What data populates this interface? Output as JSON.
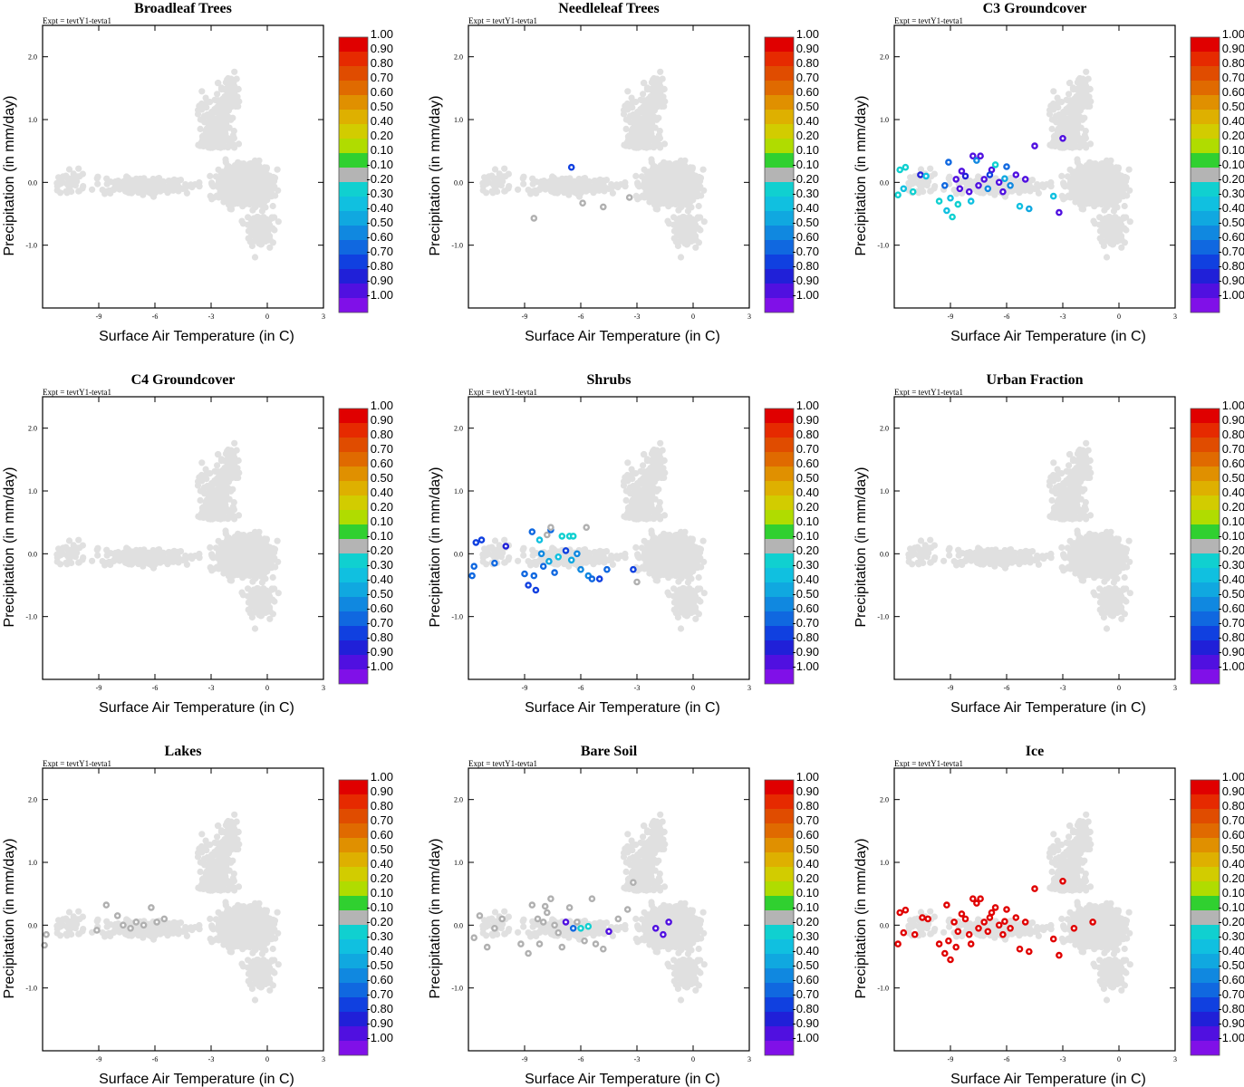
{
  "figure": {
    "expt_label": "Expt = tevtY1-tevta1",
    "xlabel": "Surface Air Temperature (in C)",
    "ylabel": "Precipitation (in mm/day)",
    "colors": {
      "background_points": "#e0e0e0",
      "axis": "#000000",
      "neutral_points": "#b0b0b0"
    }
  },
  "colorbar": {
    "labels": [
      "1.00",
      "0.90",
      "0.80",
      "0.70",
      "0.60",
      "0.50",
      "0.40",
      "0.20",
      "0.10",
      "-0.10",
      "-0.20",
      "-0.30",
      "-0.40",
      "-0.50",
      "-0.60",
      "-0.70",
      "-0.80",
      "-0.90",
      "-1.00"
    ],
    "colors": [
      "#e00000",
      "#e62a00",
      "#e04c00",
      "#e06a00",
      "#e09000",
      "#deb000",
      "#d2cc00",
      "#b0dc00",
      "#30d030",
      "#b4b4b4",
      "#10d0d0",
      "#10c0e0",
      "#10a8e0",
      "#1088e0",
      "#1068e0",
      "#1040e0",
      "#2020d8",
      "#5010e0",
      "#8010e8"
    ]
  },
  "chart_data": [
    {
      "type": "scatter",
      "title": "Broadleaf Trees",
      "xlabel": "Surface Air Temperature (in C)",
      "ylabel": "Precipitation (in mm/day)",
      "xlim": [
        -12,
        3
      ],
      "ylim": [
        -2,
        2.5
      ],
      "xticks": [
        "-9",
        "-6",
        "-3",
        "0",
        "3"
      ],
      "yticks": [
        "2.0",
        "1.0",
        "0.0",
        "-1.0"
      ],
      "highlighted_points": []
    },
    {
      "type": "scatter",
      "title": "Needleleaf Trees",
      "xlabel": "Surface Air Temperature (in C)",
      "ylabel": "Precipitation (in mm/day)",
      "xlim": [
        -12,
        3
      ],
      "ylim": [
        -2,
        2.5
      ],
      "xticks": [
        "-9",
        "-6",
        "-3",
        "0",
        "3"
      ],
      "yticks": [
        "2.0",
        "1.0",
        "0.0",
        "-1.0"
      ],
      "highlighted_points": [
        {
          "x": -6.5,
          "y": 0.24,
          "v": -0.7
        },
        {
          "x": -8.5,
          "y": -0.57,
          "v": 0
        },
        {
          "x": -5.9,
          "y": -0.33,
          "v": 0
        },
        {
          "x": -4.8,
          "y": -0.39,
          "v": 0
        },
        {
          "x": -3.4,
          "y": -0.24,
          "v": 0
        }
      ]
    },
    {
      "type": "scatter",
      "title": "C3 Groundcover",
      "xlabel": "Surface Air Temperature (in C)",
      "ylabel": "Precipitation (in mm/day)",
      "xlim": [
        -12,
        3
      ],
      "ylim": [
        -2,
        2.5
      ],
      "xticks": [
        "-9",
        "-6",
        "-3",
        "0",
        "3"
      ],
      "yticks": [
        "2.0",
        "1.0",
        "0.0",
        "-1.0"
      ],
      "highlighted_points": [
        {
          "x": -11.8,
          "y": -0.2,
          "v": -0.2
        },
        {
          "x": -11.7,
          "y": 0.2,
          "v": -0.2
        },
        {
          "x": -11.4,
          "y": 0.24,
          "v": -0.2
        },
        {
          "x": -11.5,
          "y": -0.1,
          "v": -0.3
        },
        {
          "x": -11.0,
          "y": -0.15,
          "v": -0.2
        },
        {
          "x": -10.6,
          "y": 0.12,
          "v": -0.8
        },
        {
          "x": -10.3,
          "y": 0.1,
          "v": -0.3
        },
        {
          "x": -9.6,
          "y": -0.3,
          "v": -0.2
        },
        {
          "x": -9.2,
          "y": -0.45,
          "v": -0.3
        },
        {
          "x": -8.9,
          "y": -0.55,
          "v": -0.2
        },
        {
          "x": -9.0,
          "y": -0.25,
          "v": -0.3
        },
        {
          "x": -9.3,
          "y": -0.05,
          "v": -0.6
        },
        {
          "x": -8.6,
          "y": -0.35,
          "v": -0.2
        },
        {
          "x": -9.1,
          "y": 0.32,
          "v": -0.6
        },
        {
          "x": -8.7,
          "y": 0.05,
          "v": -0.9
        },
        {
          "x": -8.5,
          "y": -0.1,
          "v": -0.9
        },
        {
          "x": -8.4,
          "y": 0.18,
          "v": -0.9
        },
        {
          "x": -8.2,
          "y": 0.1,
          "v": -0.8
        },
        {
          "x": -8.0,
          "y": -0.15,
          "v": -0.9
        },
        {
          "x": -7.8,
          "y": 0.42,
          "v": -0.9
        },
        {
          "x": -7.6,
          "y": 0.35,
          "v": -0.5
        },
        {
          "x": -7.4,
          "y": 0.42,
          "v": -0.9
        },
        {
          "x": -7.2,
          "y": 0.05,
          "v": -0.9
        },
        {
          "x": -7.0,
          "y": -0.1,
          "v": -0.5
        },
        {
          "x": -6.8,
          "y": 0.2,
          "v": -0.9
        },
        {
          "x": -6.6,
          "y": 0.28,
          "v": -0.2
        },
        {
          "x": -6.4,
          "y": 0.0,
          "v": -0.9
        },
        {
          "x": -6.2,
          "y": -0.15,
          "v": -0.9
        },
        {
          "x": -6.0,
          "y": 0.25,
          "v": -0.6
        },
        {
          "x": -5.8,
          "y": -0.05,
          "v": -0.5
        },
        {
          "x": -5.5,
          "y": 0.12,
          "v": -0.9
        },
        {
          "x": -5.3,
          "y": -0.38,
          "v": -0.3
        },
        {
          "x": -5.0,
          "y": 0.05,
          "v": -0.9
        },
        {
          "x": -4.8,
          "y": -0.42,
          "v": -0.4
        },
        {
          "x": -4.5,
          "y": 0.58,
          "v": -0.9
        },
        {
          "x": -3.5,
          "y": -0.22,
          "v": -0.3
        },
        {
          "x": -3.2,
          "y": -0.48,
          "v": -0.9
        },
        {
          "x": -3.0,
          "y": 0.7,
          "v": -0.9
        },
        {
          "x": -7.9,
          "y": -0.3,
          "v": -0.3
        },
        {
          "x": -6.9,
          "y": 0.12,
          "v": -0.7
        },
        {
          "x": -6.1,
          "y": 0.06,
          "v": -0.4
        },
        {
          "x": -7.5,
          "y": -0.05,
          "v": -0.9
        }
      ]
    },
    {
      "type": "scatter",
      "title": "C4 Groundcover",
      "xlabel": "Surface Air Temperature (in C)",
      "ylabel": "Precipitation (in mm/day)",
      "xlim": [
        -12,
        3
      ],
      "ylim": [
        -2,
        2.5
      ],
      "xticks": [
        "-9",
        "-6",
        "-3",
        "0",
        "3"
      ],
      "yticks": [
        "2.0",
        "1.0",
        "0.0",
        "-1.0"
      ],
      "highlighted_points": []
    },
    {
      "type": "scatter",
      "title": "Shrubs",
      "xlabel": "Surface Air Temperature (in C)",
      "ylabel": "Precipitation (in mm/day)",
      "xlim": [
        -12,
        3
      ],
      "ylim": [
        -2,
        2.5
      ],
      "xticks": [
        "-9",
        "-6",
        "-3",
        "0",
        "3"
      ],
      "yticks": [
        "2.0",
        "1.0",
        "0.0",
        "-1.0"
      ],
      "highlighted_points": [
        {
          "x": -11.8,
          "y": -0.35,
          "v": -0.6
        },
        {
          "x": -11.6,
          "y": 0.18,
          "v": -0.7
        },
        {
          "x": -11.3,
          "y": 0.22,
          "v": -0.7
        },
        {
          "x": -11.7,
          "y": -0.2,
          "v": -0.6
        },
        {
          "x": -10.6,
          "y": -0.15,
          "v": -0.6
        },
        {
          "x": -10.0,
          "y": 0.12,
          "v": -0.8
        },
        {
          "x": -9.0,
          "y": -0.32,
          "v": -0.6
        },
        {
          "x": -8.8,
          "y": -0.5,
          "v": -0.7
        },
        {
          "x": -8.5,
          "y": -0.35,
          "v": -0.6
        },
        {
          "x": -8.4,
          "y": -0.58,
          "v": -0.7
        },
        {
          "x": -8.6,
          "y": 0.35,
          "v": -0.6
        },
        {
          "x": -8.2,
          "y": 0.22,
          "v": -0.3
        },
        {
          "x": -8.0,
          "y": -0.2,
          "v": -0.6
        },
        {
          "x": -7.8,
          "y": 0.3,
          "v": 0
        },
        {
          "x": -7.6,
          "y": 0.38,
          "v": -0.6
        },
        {
          "x": -7.4,
          "y": -0.3,
          "v": -0.6
        },
        {
          "x": -7.2,
          "y": -0.05,
          "v": -0.3
        },
        {
          "x": -7.0,
          "y": 0.28,
          "v": -0.2
        },
        {
          "x": -6.8,
          "y": 0.05,
          "v": -0.7
        },
        {
          "x": -6.6,
          "y": 0.28,
          "v": -0.2
        },
        {
          "x": -6.4,
          "y": 0.28,
          "v": -0.2
        },
        {
          "x": -6.2,
          "y": 0.0,
          "v": -0.5
        },
        {
          "x": -6.0,
          "y": -0.25,
          "v": -0.5
        },
        {
          "x": -5.6,
          "y": -0.35,
          "v": -0.5
        },
        {
          "x": -5.4,
          "y": -0.4,
          "v": -0.6
        },
        {
          "x": -5.0,
          "y": -0.4,
          "v": -0.7
        },
        {
          "x": -4.6,
          "y": -0.25,
          "v": -0.6
        },
        {
          "x": -3.2,
          "y": -0.25,
          "v": -0.7
        },
        {
          "x": -8.1,
          "y": 0.0,
          "v": -0.5
        },
        {
          "x": -7.7,
          "y": -0.12,
          "v": -0.4
        },
        {
          "x": -6.5,
          "y": -0.1,
          "v": -0.4
        },
        {
          "x": -3.0,
          "y": -0.45,
          "v": 0
        },
        {
          "x": -5.7,
          "y": 0.42,
          "v": 0
        },
        {
          "x": -7.6,
          "y": 0.42,
          "v": 0
        }
      ]
    },
    {
      "type": "scatter",
      "title": "Urban Fraction",
      "xlabel": "Surface Air Temperature (in C)",
      "ylabel": "Precipitation (in mm/day)",
      "xlim": [
        -12,
        3
      ],
      "ylim": [
        -2,
        2.5
      ],
      "xticks": [
        "-9",
        "-6",
        "-3",
        "0",
        "3"
      ],
      "yticks": [
        "2.0",
        "1.0",
        "0.0",
        "-1.0"
      ],
      "highlighted_points": []
    },
    {
      "type": "scatter",
      "title": "Lakes",
      "xlabel": "Surface Air Temperature (in C)",
      "ylabel": "Precipitation (in mm/day)",
      "xlim": [
        -12,
        3
      ],
      "ylim": [
        -2,
        2.5
      ],
      "xticks": [
        "-9",
        "-6",
        "-3",
        "0",
        "3"
      ],
      "yticks": [
        "2.0",
        "1.0",
        "0.0",
        "-1.0"
      ],
      "highlighted_points": [
        {
          "x": -11.8,
          "y": -0.15,
          "v": 0
        },
        {
          "x": -11.9,
          "y": -0.32,
          "v": 0
        },
        {
          "x": -9.1,
          "y": -0.08,
          "v": 0
        },
        {
          "x": -8.6,
          "y": 0.32,
          "v": 0
        },
        {
          "x": -8.0,
          "y": 0.15,
          "v": 0
        },
        {
          "x": -7.7,
          "y": 0.0,
          "v": 0
        },
        {
          "x": -7.3,
          "y": -0.05,
          "v": 0
        },
        {
          "x": -7.0,
          "y": 0.05,
          "v": 0
        },
        {
          "x": -6.6,
          "y": 0.0,
          "v": 0
        },
        {
          "x": -6.2,
          "y": 0.28,
          "v": 0
        },
        {
          "x": -5.9,
          "y": 0.05,
          "v": 0
        },
        {
          "x": -5.5,
          "y": 0.1,
          "v": 0
        }
      ]
    },
    {
      "type": "scatter",
      "title": "Bare Soil",
      "xlabel": "Surface Air Temperature (in C)",
      "ylabel": "Precipitation (in mm/day)",
      "xlim": [
        -12,
        3
      ],
      "ylim": [
        -2,
        2.5
      ],
      "xticks": [
        "-9",
        "-6",
        "-3",
        "0",
        "3"
      ],
      "yticks": [
        "2.0",
        "1.0",
        "0.0",
        "-1.0"
      ],
      "highlighted_points": [
        {
          "x": -11.7,
          "y": -0.2,
          "v": 0
        },
        {
          "x": -11.4,
          "y": 0.15,
          "v": 0
        },
        {
          "x": -10.6,
          "y": -0.05,
          "v": 0
        },
        {
          "x": -10.2,
          "y": 0.1,
          "v": 0
        },
        {
          "x": -9.2,
          "y": -0.3,
          "v": 0
        },
        {
          "x": -8.8,
          "y": -0.45,
          "v": 0
        },
        {
          "x": -8.6,
          "y": 0.32,
          "v": 0
        },
        {
          "x": -8.3,
          "y": 0.1,
          "v": 0
        },
        {
          "x": -8.2,
          "y": -0.3,
          "v": 0
        },
        {
          "x": -8.0,
          "y": 0.05,
          "v": 0
        },
        {
          "x": -7.8,
          "y": 0.2,
          "v": 0
        },
        {
          "x": -7.6,
          "y": 0.42,
          "v": 0
        },
        {
          "x": -7.4,
          "y": 0.0,
          "v": 0
        },
        {
          "x": -7.2,
          "y": -0.12,
          "v": 0
        },
        {
          "x": -7.0,
          "y": -0.35,
          "v": 0
        },
        {
          "x": -6.8,
          "y": 0.05,
          "v": -0.9
        },
        {
          "x": -6.6,
          "y": 0.28,
          "v": 0
        },
        {
          "x": -6.4,
          "y": -0.05,
          "v": -0.6
        },
        {
          "x": -6.2,
          "y": 0.05,
          "v": 0
        },
        {
          "x": -6.0,
          "y": -0.05,
          "v": -0.2
        },
        {
          "x": -5.8,
          "y": -0.25,
          "v": 0
        },
        {
          "x": -5.6,
          "y": -0.02,
          "v": -0.2
        },
        {
          "x": -5.4,
          "y": 0.42,
          "v": 0
        },
        {
          "x": -5.2,
          "y": -0.3,
          "v": 0
        },
        {
          "x": -4.8,
          "y": -0.38,
          "v": 0
        },
        {
          "x": -4.5,
          "y": -0.1,
          "v": -0.9
        },
        {
          "x": -4.0,
          "y": 0.1,
          "v": 0
        },
        {
          "x": -3.2,
          "y": 0.68,
          "v": 0
        },
        {
          "x": -2.0,
          "y": -0.05,
          "v": -0.9
        },
        {
          "x": -1.6,
          "y": -0.15,
          "v": -0.9
        },
        {
          "x": -1.3,
          "y": 0.05,
          "v": -0.9
        },
        {
          "x": -3.5,
          "y": 0.25,
          "v": 0
        },
        {
          "x": -11.0,
          "y": -0.35,
          "v": 0
        },
        {
          "x": -7.9,
          "y": 0.3,
          "v": 0
        }
      ]
    },
    {
      "type": "scatter",
      "title": "Ice",
      "xlabel": "Surface Air Temperature (in C)",
      "ylabel": "Precipitation (in mm/day)",
      "xlim": [
        -12,
        3
      ],
      "ylim": [
        -2,
        2.5
      ],
      "xticks": [
        "-9",
        "-6",
        "-3",
        "0",
        "3"
      ],
      "yticks": [
        "2.0",
        "1.0",
        "0.0",
        "-1.0"
      ],
      "highlighted_points": [
        {
          "x": -11.8,
          "y": -0.3,
          "v": 1
        },
        {
          "x": -11.7,
          "y": 0.2,
          "v": 1
        },
        {
          "x": -11.4,
          "y": 0.24,
          "v": 1
        },
        {
          "x": -11.5,
          "y": -0.12,
          "v": 1
        },
        {
          "x": -10.9,
          "y": -0.15,
          "v": 1
        },
        {
          "x": -10.5,
          "y": 0.12,
          "v": 1
        },
        {
          "x": -10.2,
          "y": 0.1,
          "v": 1
        },
        {
          "x": -9.6,
          "y": -0.3,
          "v": 1
        },
        {
          "x": -9.3,
          "y": -0.45,
          "v": 1
        },
        {
          "x": -9.0,
          "y": -0.55,
          "v": 1
        },
        {
          "x": -9.1,
          "y": -0.25,
          "v": 1
        },
        {
          "x": -9.2,
          "y": 0.32,
          "v": 1
        },
        {
          "x": -8.8,
          "y": 0.05,
          "v": 1
        },
        {
          "x": -8.6,
          "y": -0.1,
          "v": 1
        },
        {
          "x": -8.4,
          "y": 0.18,
          "v": 1
        },
        {
          "x": -8.2,
          "y": 0.1,
          "v": 1
        },
        {
          "x": -8.0,
          "y": -0.15,
          "v": 1
        },
        {
          "x": -7.8,
          "y": 0.42,
          "v": 1
        },
        {
          "x": -7.6,
          "y": 0.35,
          "v": 1
        },
        {
          "x": -7.4,
          "y": 0.42,
          "v": 1
        },
        {
          "x": -7.2,
          "y": 0.05,
          "v": 1
        },
        {
          "x": -7.0,
          "y": -0.1,
          "v": 1
        },
        {
          "x": -6.8,
          "y": 0.2,
          "v": 1
        },
        {
          "x": -6.6,
          "y": 0.28,
          "v": 1
        },
        {
          "x": -6.4,
          "y": 0.0,
          "v": 1
        },
        {
          "x": -6.2,
          "y": -0.15,
          "v": 1
        },
        {
          "x": -6.0,
          "y": 0.25,
          "v": 1
        },
        {
          "x": -5.8,
          "y": -0.05,
          "v": 1
        },
        {
          "x": -5.5,
          "y": 0.12,
          "v": 1
        },
        {
          "x": -5.3,
          "y": -0.38,
          "v": 1
        },
        {
          "x": -5.0,
          "y": 0.05,
          "v": 1
        },
        {
          "x": -4.8,
          "y": -0.42,
          "v": 1
        },
        {
          "x": -4.5,
          "y": 0.58,
          "v": 1
        },
        {
          "x": -3.5,
          "y": -0.22,
          "v": 1
        },
        {
          "x": -3.2,
          "y": -0.48,
          "v": 1
        },
        {
          "x": -3.0,
          "y": 0.7,
          "v": 1
        },
        {
          "x": -2.4,
          "y": -0.05,
          "v": 1
        },
        {
          "x": -1.4,
          "y": 0.05,
          "v": 1
        },
        {
          "x": -7.9,
          "y": -0.3,
          "v": 1
        },
        {
          "x": -6.9,
          "y": 0.12,
          "v": 1
        },
        {
          "x": -6.1,
          "y": 0.06,
          "v": 1
        },
        {
          "x": -7.5,
          "y": -0.05,
          "v": 1
        },
        {
          "x": -8.7,
          "y": -0.35,
          "v": 1
        }
      ]
    }
  ]
}
